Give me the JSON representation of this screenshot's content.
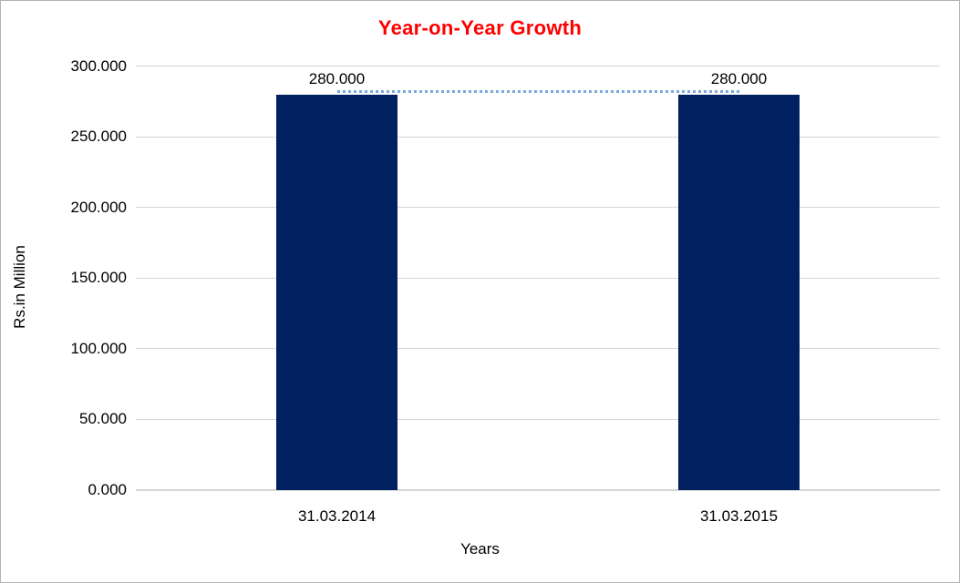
{
  "colors": {
    "title": "#FF0000",
    "bar": "#002060",
    "gridline": "#D6D6D6",
    "baseline": "#D6D6D6",
    "connector": "#7BA7DC",
    "label_text": "#000000",
    "frame_border": "#B3B3B3",
    "background": "#FFFFFF"
  },
  "chart_data": {
    "type": "bar",
    "title": "Year-on-Year Growth",
    "categories": [
      "31.03.2014",
      "31.03.2015"
    ],
    "values": [
      280.0,
      280.0
    ],
    "data_labels": [
      "280.000",
      "280.000"
    ],
    "xlabel": "Years",
    "ylabel": "Rs.in Million",
    "ylim": [
      0,
      300
    ],
    "ytick_step": 50,
    "ytick_labels": [
      "0.000",
      "50.000",
      "100.000",
      "150.000",
      "200.000",
      "250.000",
      "300.000"
    ],
    "grid": true,
    "legend": "none",
    "annotations": "dotted connector line joining the tops of the two bars at the 280.000 level"
  }
}
